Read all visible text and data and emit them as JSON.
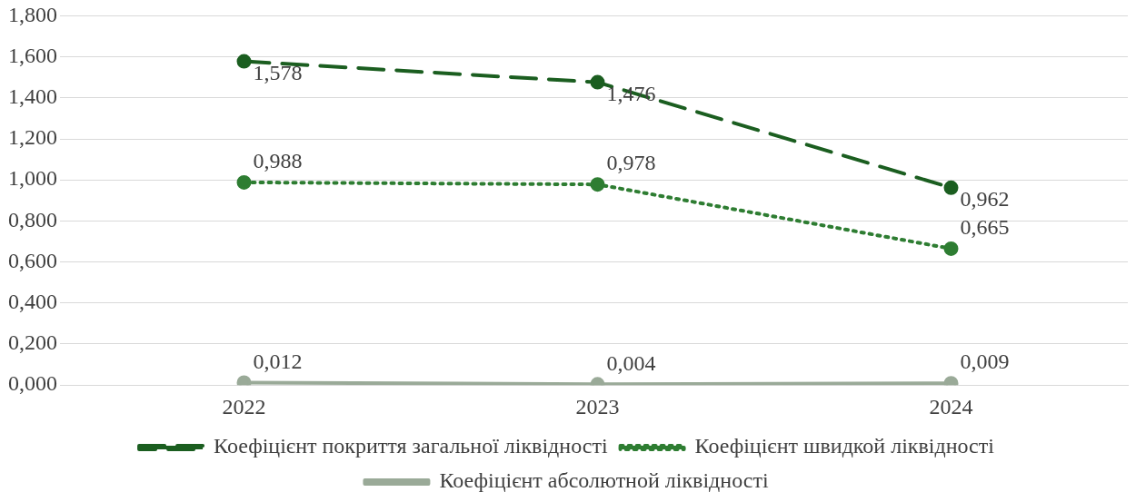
{
  "chart_data": {
    "type": "line",
    "categories": [
      "2022",
      "2023",
      "2024"
    ],
    "series": [
      {
        "name": "Коефіцієнт покриття загальної ліквідності",
        "color": "#1b5e20",
        "line_style": "dashed",
        "values": [
          1.578,
          1.476,
          0.962
        ],
        "value_labels": [
          "1,578",
          "1,476",
          "0,962"
        ]
      },
      {
        "name": "Коефіцієнт швидкой ліквідності",
        "color": "#2e7d32",
        "line_style": "dotted",
        "values": [
          0.988,
          0.978,
          0.665
        ],
        "value_labels": [
          "0,988",
          "0,978",
          "0,665"
        ]
      },
      {
        "name": "Коефіцієнт абсолютной ліквідності",
        "color": "#9aaa98",
        "line_style": "solid",
        "values": [
          0.012,
          0.004,
          0.009
        ],
        "value_labels": [
          "0,012",
          "0,004",
          "0,009"
        ]
      }
    ],
    "ylim": [
      0,
      1.8
    ],
    "yticks": [
      {
        "value": 0,
        "label": "0,000"
      },
      {
        "value": 0.2,
        "label": "0,200"
      },
      {
        "value": 0.4,
        "label": "0,400"
      },
      {
        "value": 0.6,
        "label": "0,600"
      },
      {
        "value": 0.8,
        "label": "0,800"
      },
      {
        "value": 1,
        "label": "1,000"
      },
      {
        "value": 1.2,
        "label": "1,200"
      },
      {
        "value": 1.4,
        "label": "1,400"
      },
      {
        "value": 1.6,
        "label": "1,600"
      },
      {
        "value": 1.8,
        "label": "1,800"
      }
    ],
    "grid": "y",
    "legend": "bottom",
    "marker": "circle"
  }
}
